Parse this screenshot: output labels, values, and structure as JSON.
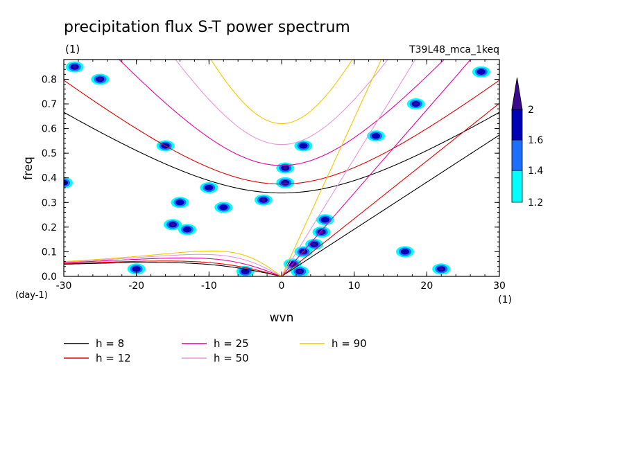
{
  "chart_data": {
    "type": "heatmap",
    "title": "precipitation flux S-T power spectrum",
    "subtitle_left": "(1)",
    "subtitle_right": "T39L48_mca_1keq",
    "xlabel": "wvn",
    "ylabel": "freq",
    "x_unit": "(1)",
    "y_unit": "(day-1)",
    "xlim": [
      -30,
      30
    ],
    "ylim": [
      0,
      0.88
    ],
    "x_ticks": [
      -30,
      -20,
      -10,
      0,
      10,
      20,
      30
    ],
    "x_tick_labels": [
      "-30",
      "-20",
      "-10",
      "0",
      "10",
      "20",
      "30"
    ],
    "y_ticks": [
      0.0,
      0.1,
      0.2,
      0.3,
      0.4,
      0.5,
      0.6,
      0.7,
      0.8
    ],
    "y_tick_labels": [
      "0.0",
      "0.1",
      "0.2",
      "0.3",
      "0.4",
      "0.5",
      "0.6",
      "0.7",
      "0.8"
    ],
    "colorbar": {
      "levels": [
        1.2,
        1.4,
        1.6,
        2
      ],
      "labels": [
        "1.2",
        "1.4",
        "1.6",
        "2"
      ],
      "colors": [
        "#00ffff",
        "#1e6fff",
        "#0000b4",
        "#3c0a8c"
      ]
    },
    "legend_position": "bottom-left",
    "dispersion_curves": [
      {
        "label": "h =  8",
        "h": 8,
        "color": "#000000"
      },
      {
        "label": "h = 12",
        "h": 12,
        "color": "#e60000"
      },
      {
        "label": "h = 25",
        "h": 25,
        "color": "#e600a0"
      },
      {
        "label": "h = 50",
        "h": 50,
        "color": "#e696dc"
      },
      {
        "label": "h = 90",
        "h": 90,
        "color": "#f0c800"
      }
    ],
    "blobs": [
      {
        "x": 1.5,
        "y": 0.05,
        "level": 3
      },
      {
        "x": 3.0,
        "y": 0.1,
        "level": 3
      },
      {
        "x": 4.5,
        "y": 0.13,
        "level": 3
      },
      {
        "x": 5.5,
        "y": 0.18,
        "level": 3
      },
      {
        "x": 2.5,
        "y": 0.02,
        "level": 3
      },
      {
        "x": 6.0,
        "y": 0.23,
        "level": 2
      },
      {
        "x": -2.5,
        "y": 0.31,
        "level": 3
      },
      {
        "x": 0.5,
        "y": 0.44,
        "level": 3
      },
      {
        "x": 0.5,
        "y": 0.38,
        "level": 3
      },
      {
        "x": -28.5,
        "y": 0.85,
        "level": 3
      },
      {
        "x": -25,
        "y": 0.8,
        "level": 3
      },
      {
        "x": 18.5,
        "y": 0.7,
        "level": 3
      },
      {
        "x": 13,
        "y": 0.57,
        "level": 2
      },
      {
        "x": -15,
        "y": 0.21,
        "level": 3
      },
      {
        "x": -13,
        "y": 0.19,
        "level": 2
      },
      {
        "x": -20,
        "y": 0.03,
        "level": 2
      },
      {
        "x": -8,
        "y": 0.28,
        "level": 2
      },
      {
        "x": -10,
        "y": 0.36,
        "level": 2
      },
      {
        "x": -14,
        "y": 0.3,
        "level": 2
      },
      {
        "x": 22,
        "y": 0.03,
        "level": 3
      },
      {
        "x": 17,
        "y": 0.1,
        "level": 2
      },
      {
        "x": 27.5,
        "y": 0.83,
        "level": 2
      },
      {
        "x": 3,
        "y": 0.53,
        "level": 2
      },
      {
        "x": -30,
        "y": 0.38,
        "level": 2
      },
      {
        "x": -16,
        "y": 0.53,
        "level": 2
      },
      {
        "x": -5,
        "y": 0.02,
        "level": 2
      }
    ]
  }
}
